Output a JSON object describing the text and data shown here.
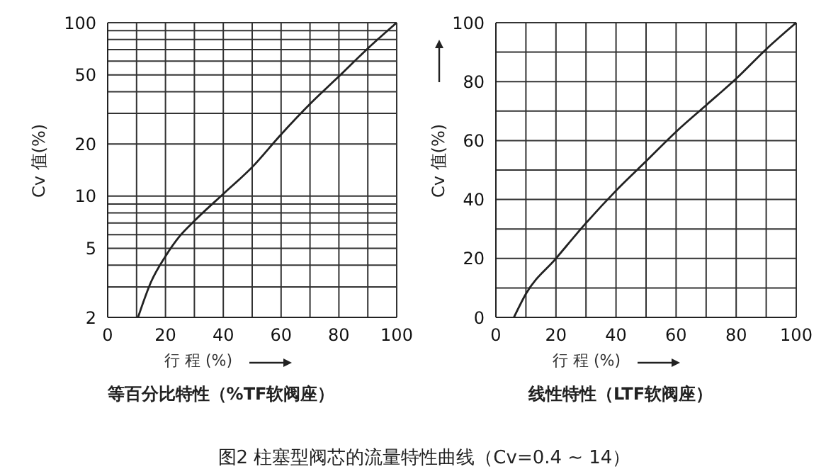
{
  "chart_data": [
    {
      "type": "line",
      "title": "等百分比特性（%TF软阀座）",
      "xlabel": "行 程 (%)",
      "ylabel": "Cv 值(%)",
      "log": "y",
      "grid": true,
      "marker": "none",
      "line_style": "solid",
      "xlim": [
        0,
        100
      ],
      "xticks": [
        0,
        {
          "value": 10,
          "label": null
        },
        20,
        {
          "value": 30,
          "label": null
        },
        40,
        {
          "value": 50,
          "label": null
        },
        60,
        {
          "value": 70,
          "label": null
        },
        80,
        {
          "value": 90,
          "label": null
        },
        100
      ],
      "ylim": [
        2,
        100
      ],
      "yticks": [
        2,
        {
          "value": 3,
          "label": null
        },
        {
          "value": 4,
          "label": null
        },
        5,
        {
          "value": 6,
          "label": null
        },
        {
          "value": 7,
          "label": null
        },
        {
          "value": 8,
          "label": null
        },
        {
          "value": 9,
          "label": null
        },
        10,
        20,
        {
          "value": 30,
          "label": null
        },
        {
          "value": 40,
          "label": null
        },
        50,
        {
          "value": 60,
          "label": null
        },
        {
          "value": 70,
          "label": null
        },
        {
          "value": 80,
          "label": null
        },
        {
          "value": 90,
          "label": null
        },
        100
      ],
      "series": [
        {
          "color": "#222222",
          "x": [
            10.5,
            15,
            20,
            25,
            30,
            40,
            50,
            60,
            70,
            80,
            90,
            100
          ],
          "values": [
            2,
            3.2,
            4.5,
            5.9,
            7.2,
            10.3,
            14.7,
            22.7,
            34,
            49,
            71,
            100
          ]
        }
      ]
    },
    {
      "type": "line",
      "title": "线性特性（LTF软阀座）",
      "xlabel": "行 程 (%)",
      "ylabel": "Cv 值(%)",
      "grid": true,
      "marker": "none",
      "line_style": "solid",
      "annotations": [
        "图2 柱塞型阀芯的流量特性曲线（Cv=0.4 ~ 14）"
      ],
      "xlim": [
        0,
        100
      ],
      "xticks": [
        0,
        {
          "value": 10,
          "label": null
        },
        20,
        {
          "value": 30,
          "label": null
        },
        40,
        {
          "value": 50,
          "label": null
        },
        60,
        {
          "value": 70,
          "label": null
        },
        80,
        {
          "value": 90,
          "label": null
        },
        100
      ],
      "ylim": [
        0,
        100
      ],
      "yticks": [
        0,
        {
          "value": 10,
          "label": null
        },
        20,
        {
          "value": 30,
          "label": null
        },
        40,
        {
          "value": 50,
          "label": null
        },
        60,
        {
          "value": 70,
          "label": null
        },
        80,
        {
          "value": 90,
          "label": null
        },
        100
      ],
      "series": [
        {
          "color": "#222222",
          "x": [
            6,
            10,
            20,
            30,
            40,
            50,
            60,
            70,
            80,
            90,
            100
          ],
          "values": [
            0,
            8,
            20,
            32,
            43,
            53,
            63,
            72,
            81,
            91,
            100
          ]
        }
      ]
    }
  ]
}
